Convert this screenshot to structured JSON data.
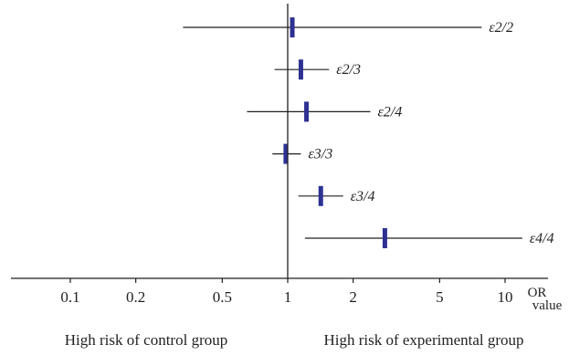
{
  "chart_data": {
    "type": "forest",
    "scale": "log",
    "reference_value": 1,
    "xlabel_line1": "OR",
    "xlabel_line2": "value",
    "xlim": [
      0.06,
      16
    ],
    "ticks": [
      {
        "value": 0.1,
        "label": "0.1"
      },
      {
        "value": 0.2,
        "label": "0.2"
      },
      {
        "value": 0.5,
        "label": "0.5"
      },
      {
        "value": 1,
        "label": "1"
      },
      {
        "value": 2,
        "label": "2"
      },
      {
        "value": 5,
        "label": "5"
      },
      {
        "value": 10,
        "label": "10"
      }
    ],
    "rows": [
      {
        "label": "ε2/2",
        "or": 1.05,
        "lower": 0.33,
        "upper": 7.8
      },
      {
        "label": "ε2/3",
        "or": 1.15,
        "lower": 0.87,
        "upper": 1.55
      },
      {
        "label": "ε2/4",
        "or": 1.22,
        "lower": 0.65,
        "upper": 2.4
      },
      {
        "label": "ε3/3",
        "or": 0.98,
        "lower": 0.85,
        "upper": 1.15
      },
      {
        "label": "ε3/4",
        "or": 1.42,
        "lower": 1.12,
        "upper": 1.8
      },
      {
        "label": "ε4/4",
        "or": 2.8,
        "lower": 1.2,
        "upper": 12
      }
    ],
    "marker_color": "#2e3192",
    "line_color": "#231f20",
    "side_labels": {
      "left": "High risk of control group",
      "right": "High risk of experimental group"
    }
  }
}
